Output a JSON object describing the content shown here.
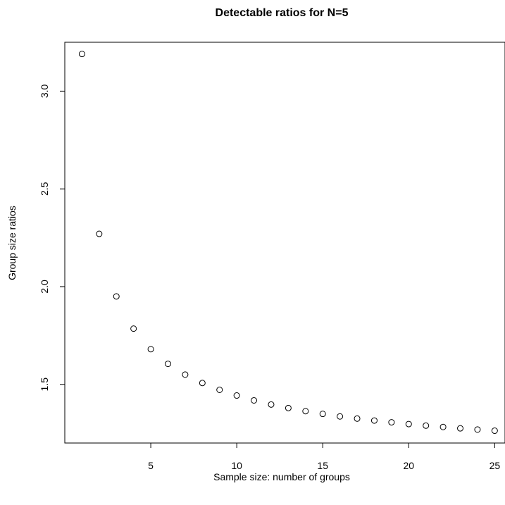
{
  "chart_data": {
    "type": "scatter",
    "title": "Detectable ratios for N=5",
    "xlabel": "Sample size: number of groups",
    "ylabel": "Group size ratios",
    "xlim": [
      0,
      25.6
    ],
    "ylim": [
      1.2,
      3.25
    ],
    "xticks": [
      5,
      10,
      15,
      20,
      25
    ],
    "xtick_labels": [
      "5",
      "10",
      "15",
      "20",
      "25"
    ],
    "yticks": [
      1.5,
      2.0,
      2.5,
      3.0
    ],
    "ytick_labels": [
      "1.5",
      "2.0",
      "2.5",
      "3.0"
    ],
    "grid": false,
    "marker": "open-circle",
    "x": [
      1,
      2,
      3,
      4,
      5,
      6,
      7,
      8,
      9,
      10,
      11,
      12,
      13,
      14,
      15,
      16,
      17,
      18,
      19,
      20,
      21,
      22,
      23,
      24,
      25
    ],
    "y": [
      3.19,
      2.27,
      1.95,
      1.785,
      1.68,
      1.605,
      1.55,
      1.507,
      1.472,
      1.443,
      1.418,
      1.397,
      1.379,
      1.363,
      1.349,
      1.336,
      1.325,
      1.315,
      1.306,
      1.297,
      1.289,
      1.282,
      1.275,
      1.269,
      1.263
    ],
    "colors": {
      "marker_stroke": "#000000",
      "axis": "#000000",
      "background": "#ffffff"
    }
  }
}
